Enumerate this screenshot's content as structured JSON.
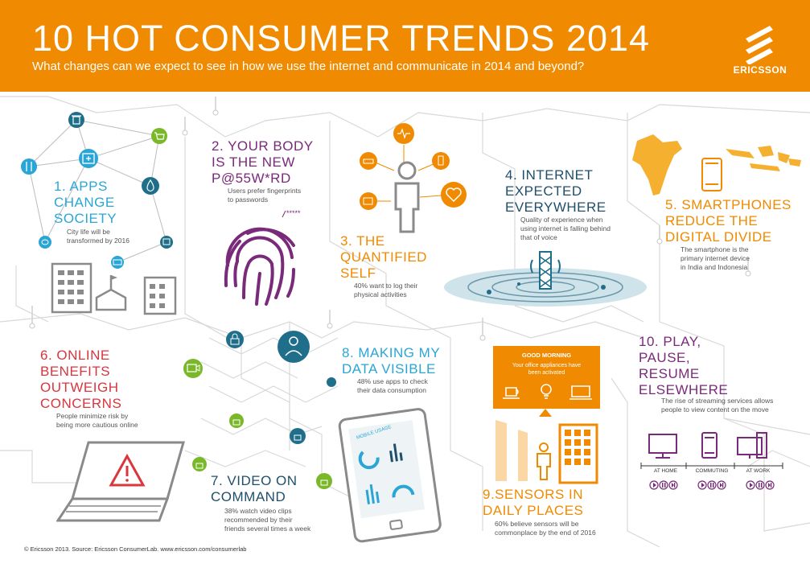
{
  "header": {
    "title": "10 HOT CONSUMER TRENDS 2014",
    "subtitle": "What changes can we expect to see in how we use the internet and communicate in 2014 and beyond?",
    "logo_text": "ERICSSON"
  },
  "trends": [
    {
      "title_lines": [
        "1. APPS",
        "CHANGE",
        "SOCIETY"
      ],
      "desc_lines": [
        "City life will be",
        "transformed by 2016"
      ]
    },
    {
      "title_lines": [
        "2. YOUR BODY",
        "IS THE NEW",
        "P@55W*RD"
      ],
      "desc_lines": [
        "Users prefer fingerprints",
        "to passwords"
      ],
      "badge": "*****"
    },
    {
      "title_lines": [
        "3. THE",
        "QUANTIFIED",
        "SELF"
      ],
      "desc_lines": [
        "40% want to log their",
        "physical activities"
      ]
    },
    {
      "title_lines": [
        "4. INTERNET",
        "EXPECTED",
        "EVERYWHERE"
      ],
      "desc_lines": [
        "Quality of experience when",
        "using internet is falling behind",
        "that of voice"
      ]
    },
    {
      "title_lines": [
        "5. SMARTPHONES",
        "REDUCE THE",
        "DIGITAL DIVIDE"
      ],
      "desc_lines": [
        "The smartphone is the",
        "primary internet device",
        "in India and Indonesia"
      ]
    },
    {
      "title_lines": [
        "6. ONLINE",
        "BENEFITS",
        "OUTWEIGH",
        "CONCERNS"
      ],
      "desc_lines": [
        "People minimize risk by",
        "being more cautious online"
      ]
    },
    {
      "title_lines": [
        "7. VIDEO ON",
        "COMMAND"
      ],
      "desc_lines": [
        "38% watch video clips",
        "recommended by their",
        "friends several times a week"
      ]
    },
    {
      "title_lines": [
        "8. MAKING MY",
        "DATA VISIBLE"
      ],
      "desc_lines": [
        "48% use apps to check",
        "their data consumption"
      ],
      "screen_label": "MOBILE USAGE"
    },
    {
      "title_lines": [
        "9.SENSORS IN",
        "DAILY PLACES"
      ],
      "desc_lines": [
        "60% believe sensors will be",
        "commonplace by the end of 2016"
      ]
    },
    {
      "title_lines": [
        "10. PLAY,",
        "PAUSE,",
        "RESUME",
        "ELSEWHERE"
      ],
      "desc_lines": [
        "The rise of streaming services allows",
        "people to view content on the move"
      ]
    }
  ],
  "greeting": {
    "title": "GOOD MORNING",
    "lines": [
      "Your office appliances have",
      "been activated"
    ]
  },
  "locations": [
    "AT HOME",
    "COMMUTING",
    "AT WORK"
  ],
  "footer": "© Ericsson 2013. Source: Ericsson ConsumerLab. www.ericsson.com/consumerlab",
  "colors": {
    "header": "#f08a00",
    "blue": "#2aa6d6",
    "purple": "#7a2a7a",
    "orange": "#f08a00",
    "navy": "#1f4f6b",
    "red": "#d9363e",
    "green": "#7ab829",
    "teal": "#1f6f8a"
  },
  "icons": [
    "trash-icon",
    "cart-icon",
    "first-aid-icon",
    "water-drop-icon",
    "fork-knife-icon",
    "bus-icon",
    "ticket-icon",
    "chat-icon",
    "fingerprint-icon",
    "person-icon",
    "heart-icon",
    "drink-icon",
    "battery-icon",
    "heartbeat-icon",
    "shoe-icon",
    "antenna-icon",
    "phone-icon",
    "lock-icon",
    "camera-icon",
    "warning-icon",
    "laptop-icon",
    "tablet-icon",
    "coffee-icon",
    "lightbulb-icon",
    "monitor-icon",
    "play-icon",
    "pause-icon",
    "skip-icon"
  ]
}
